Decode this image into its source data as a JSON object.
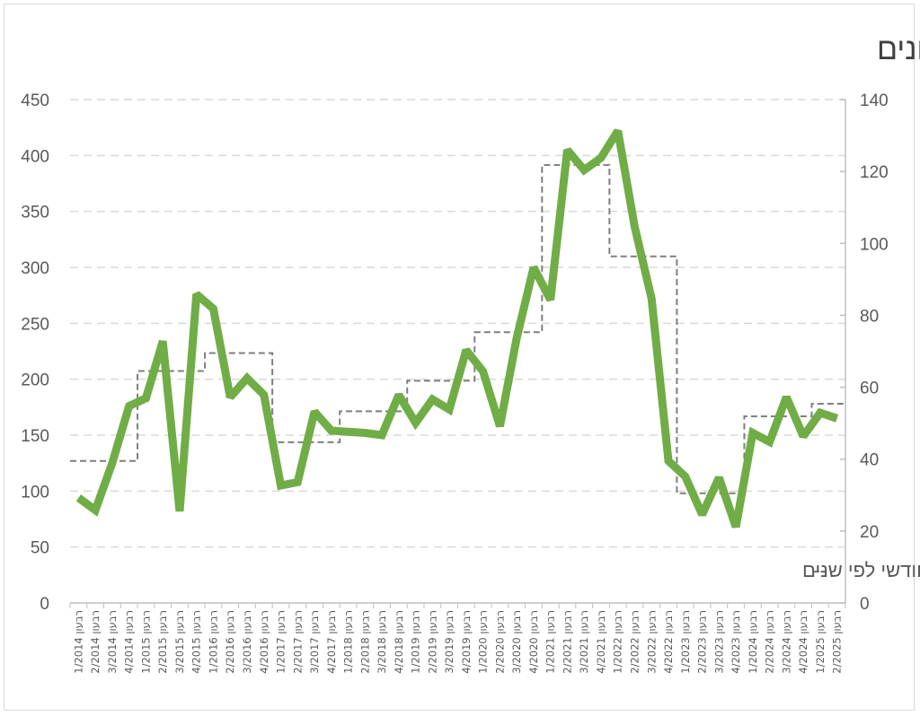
{
  "chart_data": {
    "type": "line",
    "title": "כמות דירות שנמכרו בחריש לפי רבעונים",
    "categories": [
      "רבעון 1/2014",
      "רבעון 2/2014",
      "רבעון 3/2014",
      "רבעון 4/2014",
      "רבעון 1/2015",
      "רבעון 2/2015",
      "רבעון 3/2015",
      "רבעון 4/2015",
      "רבעון 1/2016",
      "רבעון 2/2016",
      "רבעון 3/2016",
      "רבעון 4/2016",
      "רבעון 1/2017",
      "רבעון 2/2017",
      "רבעון 3/2017",
      "רבעון 4/2017",
      "רבעון 1/2018",
      "רבעון 2/2018",
      "רבעון 3/2018",
      "רבעון 4/2018",
      "רבעון 1/2019",
      "רבעון 2/2019",
      "רבעון 3/2019",
      "רבעון 4/2019",
      "רבעון 1/2020",
      "רבעון 2/2020",
      "רבעון 3/2020",
      "רבעון 4/2020",
      "רבעון 1/2021",
      "רבעון 2/2021",
      "רבעון 3/2021",
      "רבעון 4/2021",
      "רבעון 1/2022",
      "רבעון 2/2022",
      "רבעון 3/2022",
      "רבעון 4/2022",
      "רבעון 1/2023",
      "רבעון 2/2023",
      "רבעון 3/2023",
      "רבעון 4/2023",
      "רבעון 1/2024",
      "רבעון 2/2024",
      "רבעון 3/2024",
      "רבעון 4/2024",
      "רבעון 1/2025",
      "רבעון 2/2025"
    ],
    "series": [
      {
        "axis": "left",
        "color": "#70ad47",
        "style": "solid",
        "values": [
          94,
          83,
          125,
          176,
          183,
          234,
          82,
          276,
          263,
          184,
          201,
          186,
          105,
          108,
          171,
          154,
          153,
          152,
          150,
          186,
          161,
          182,
          173,
          226,
          207,
          158,
          237,
          300,
          271,
          405,
          387,
          398,
          422,
          336,
          272,
          127,
          113,
          79,
          112,
          68,
          152,
          144,
          184,
          149,
          170,
          165
        ]
      },
      {
        "name": "ממוצע מכירות חודשי לפי שנים",
        "axis": "right",
        "color": "#7f7f7f",
        "style": "dashed",
        "values": [
          39.5,
          39.5,
          39.5,
          39.5,
          64.5,
          64.5,
          64.5,
          64.5,
          69.5,
          69.5,
          69.5,
          69.5,
          44.7,
          44.7,
          44.7,
          44.7,
          53.3,
          53.3,
          53.3,
          53.3,
          61.8,
          61.8,
          61.8,
          61.8,
          75.3,
          75.3,
          75.3,
          75.3,
          121.8,
          121.8,
          121.8,
          121.8,
          96.4,
          96.4,
          96.4,
          96.4,
          30.5,
          30.5,
          30.5,
          30.5,
          51.9,
          51.9,
          51.9,
          51.9,
          55.4,
          55.4
        ]
      }
    ],
    "y_left": {
      "min": 0,
      "max": 450,
      "ticks": [
        0,
        50,
        100,
        150,
        200,
        250,
        300,
        350,
        400,
        450
      ]
    },
    "y_right": {
      "min": 0,
      "max": 140,
      "ticks": [
        0,
        20,
        40,
        60,
        80,
        100,
        120,
        140
      ]
    },
    "grid": true,
    "legend": {
      "position": "bottom-right",
      "marker": "--"
    }
  }
}
